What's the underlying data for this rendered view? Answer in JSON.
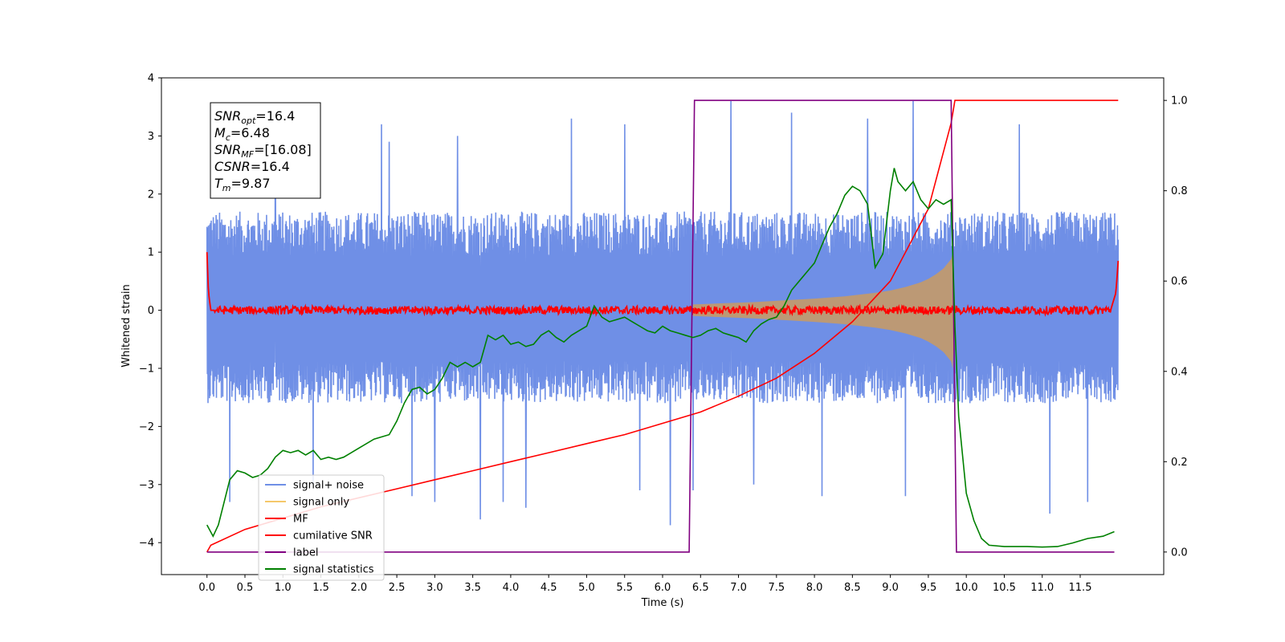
{
  "chart_data": {
    "type": "line",
    "xlabel": "Time (s)",
    "ylabel": "Whitened strain",
    "xlim": [
      -0.6,
      12.6
    ],
    "ylim": [
      -4.55,
      4.0
    ],
    "ylim_right": [
      -0.05,
      1.05
    ],
    "x_ticks": [
      "0.0",
      "0.5",
      "1.0",
      "1.5",
      "2.0",
      "2.5",
      "3.0",
      "3.5",
      "4.0",
      "4.5",
      "5.0",
      "5.5",
      "6.0",
      "6.5",
      "7.0",
      "7.5",
      "8.0",
      "8.5",
      "9.0",
      "9.5",
      "10.0",
      "10.5",
      "11.0",
      "11.5"
    ],
    "x_tick_values": [
      0.0,
      0.5,
      1.0,
      1.5,
      2.0,
      2.5,
      3.0,
      3.5,
      4.0,
      4.5,
      5.0,
      5.5,
      6.0,
      6.5,
      7.0,
      7.5,
      8.0,
      8.5,
      9.0,
      9.5,
      10.0,
      10.5,
      11.0,
      11.5
    ],
    "y_ticks": [
      "4",
      "3",
      "2",
      "1",
      "0",
      "−1",
      "−2",
      "−3",
      "−4"
    ],
    "y_tick_values": [
      4,
      3,
      2,
      1,
      0,
      -1,
      -2,
      -3,
      -4
    ],
    "y2_ticks": [
      "1.0",
      "0.8",
      "0.6",
      "0.4",
      "0.2",
      "0.0"
    ],
    "y2_tick_values": [
      1.0,
      0.8,
      0.6,
      0.4,
      0.2,
      0.0
    ],
    "grid": false,
    "legend_position": "lower-left",
    "series": [
      {
        "name": "signal+ noise",
        "color": "#6f8fe6",
        "axis": "left",
        "noise_band": [
          -1.6,
          1.7
        ],
        "x_range": [
          0.0,
          12.0
        ],
        "spike_times": [
          0.3,
          0.9,
          1.4,
          2.3,
          2.4,
          2.7,
          3.0,
          3.3,
          3.6,
          3.9,
          4.2,
          4.8,
          5.5,
          5.7,
          6.1,
          6.4,
          6.9,
          7.2,
          7.7,
          8.1,
          8.7,
          9.2,
          9.3,
          10.7,
          11.1,
          11.6
        ],
        "spike_values": [
          -3.3,
          2.7,
          -3.0,
          3.2,
          2.9,
          -3.2,
          -3.3,
          3.0,
          -3.6,
          -3.3,
          -3.4,
          3.3,
          3.2,
          -3.1,
          -3.7,
          -3.1,
          3.6,
          -3.0,
          3.4,
          -3.2,
          3.3,
          -3.2,
          3.6,
          3.2,
          -3.5,
          -3.3
        ]
      },
      {
        "name": "signal only",
        "color": "#c09a6f",
        "axis": "left",
        "x": [
          6.4,
          6.8,
          7.2,
          7.6,
          8.0,
          8.4,
          8.8,
          9.0,
          9.2,
          9.4,
          9.5,
          9.6,
          9.7,
          9.75,
          9.8,
          9.82,
          9.84
        ],
        "amplitude": [
          0.1,
          0.12,
          0.14,
          0.17,
          0.2,
          0.24,
          0.3,
          0.34,
          0.4,
          0.48,
          0.54,
          0.62,
          0.72,
          0.8,
          0.88,
          1.0,
          0.4
        ]
      },
      {
        "name": "MF",
        "color": "#ff0000",
        "axis": "left",
        "x": [
          0.0,
          0.02,
          0.05,
          0.1,
          11.9,
          11.97,
          12.0
        ],
        "y": [
          1.0,
          0.3,
          0.0,
          0.0,
          0.0,
          0.3,
          0.85
        ],
        "noise_amplitude": 0.07
      },
      {
        "name": "cumilative SNR",
        "color": "#ff0000",
        "axis": "right",
        "x": [
          0.0,
          0.05,
          0.5,
          1.0,
          1.5,
          2.0,
          2.5,
          3.0,
          3.5,
          4.0,
          4.5,
          5.0,
          5.5,
          6.0,
          6.5,
          7.0,
          7.5,
          8.0,
          8.5,
          9.0,
          9.5,
          9.8,
          9.85,
          12.0
        ],
        "y": [
          0.0,
          0.015,
          0.05,
          0.075,
          0.1,
          0.12,
          0.14,
          0.16,
          0.18,
          0.2,
          0.22,
          0.24,
          0.26,
          0.285,
          0.31,
          0.345,
          0.385,
          0.44,
          0.51,
          0.6,
          0.76,
          0.95,
          1.0,
          1.0
        ]
      },
      {
        "name": "label",
        "color": "#800080",
        "axis": "right",
        "x": [
          0.0,
          6.35,
          6.42,
          9.8,
          9.87,
          11.95
        ],
        "y": [
          0.0,
          0.0,
          1.0,
          1.0,
          0.0,
          0.0
        ]
      },
      {
        "name": "signal statistics",
        "color": "#008000",
        "axis": "right",
        "x": [
          0.0,
          0.08,
          0.15,
          0.3,
          0.4,
          0.5,
          0.6,
          0.7,
          0.8,
          0.9,
          1.0,
          1.1,
          1.2,
          1.3,
          1.4,
          1.5,
          1.6,
          1.7,
          1.8,
          1.9,
          2.0,
          2.2,
          2.4,
          2.5,
          2.6,
          2.7,
          2.8,
          2.9,
          3.0,
          3.1,
          3.2,
          3.3,
          3.4,
          3.5,
          3.6,
          3.7,
          3.8,
          3.9,
          4.0,
          4.1,
          4.2,
          4.3,
          4.4,
          4.5,
          4.6,
          4.7,
          4.8,
          4.9,
          5.0,
          5.1,
          5.2,
          5.3,
          5.4,
          5.5,
          5.6,
          5.7,
          5.8,
          5.9,
          6.0,
          6.1,
          6.2,
          6.3,
          6.4,
          6.5,
          6.6,
          6.7,
          6.8,
          6.9,
          7.0,
          7.1,
          7.2,
          7.3,
          7.4,
          7.5,
          7.6,
          7.7,
          7.8,
          7.9,
          8.0,
          8.1,
          8.2,
          8.3,
          8.4,
          8.5,
          8.6,
          8.7,
          8.8,
          8.9,
          9.0,
          9.05,
          9.1,
          9.2,
          9.3,
          9.4,
          9.5,
          9.6,
          9.7,
          9.8,
          9.85,
          9.9,
          10.0,
          10.1,
          10.2,
          10.3,
          10.5,
          10.8,
          11.0,
          11.2,
          11.4,
          11.6,
          11.8,
          11.95
        ],
        "y": [
          0.06,
          0.035,
          0.06,
          0.16,
          0.18,
          0.175,
          0.165,
          0.17,
          0.185,
          0.21,
          0.225,
          0.22,
          0.225,
          0.215,
          0.225,
          0.205,
          0.21,
          0.205,
          0.21,
          0.22,
          0.23,
          0.25,
          0.26,
          0.29,
          0.33,
          0.36,
          0.365,
          0.35,
          0.36,
          0.385,
          0.42,
          0.41,
          0.42,
          0.41,
          0.42,
          0.48,
          0.47,
          0.48,
          0.46,
          0.465,
          0.455,
          0.46,
          0.48,
          0.49,
          0.475,
          0.465,
          0.48,
          0.49,
          0.5,
          0.545,
          0.52,
          0.51,
          0.515,
          0.52,
          0.51,
          0.5,
          0.49,
          0.485,
          0.5,
          0.49,
          0.485,
          0.48,
          0.475,
          0.48,
          0.49,
          0.495,
          0.485,
          0.48,
          0.475,
          0.465,
          0.49,
          0.505,
          0.515,
          0.52,
          0.545,
          0.58,
          0.6,
          0.62,
          0.64,
          0.68,
          0.72,
          0.75,
          0.79,
          0.81,
          0.8,
          0.77,
          0.63,
          0.66,
          0.8,
          0.85,
          0.82,
          0.8,
          0.82,
          0.78,
          0.76,
          0.78,
          0.77,
          0.78,
          0.5,
          0.3,
          0.13,
          0.07,
          0.03,
          0.015,
          0.012,
          0.012,
          0.011,
          0.012,
          0.02,
          0.03,
          0.035,
          0.045
        ]
      }
    ],
    "annotation": {
      "lines": [
        {
          "base": "SNR",
          "sub": "opt",
          "value": "=16.4"
        },
        {
          "base": "M",
          "sub": "c",
          "value": "=6.48"
        },
        {
          "base": "SNR",
          "sub": "MF",
          "value": "=[16.08]"
        },
        {
          "base": "CSNR",
          "sub": "",
          "value": "=16.4"
        },
        {
          "base": "T",
          "sub": "m",
          "value": "=9.87"
        }
      ]
    }
  }
}
